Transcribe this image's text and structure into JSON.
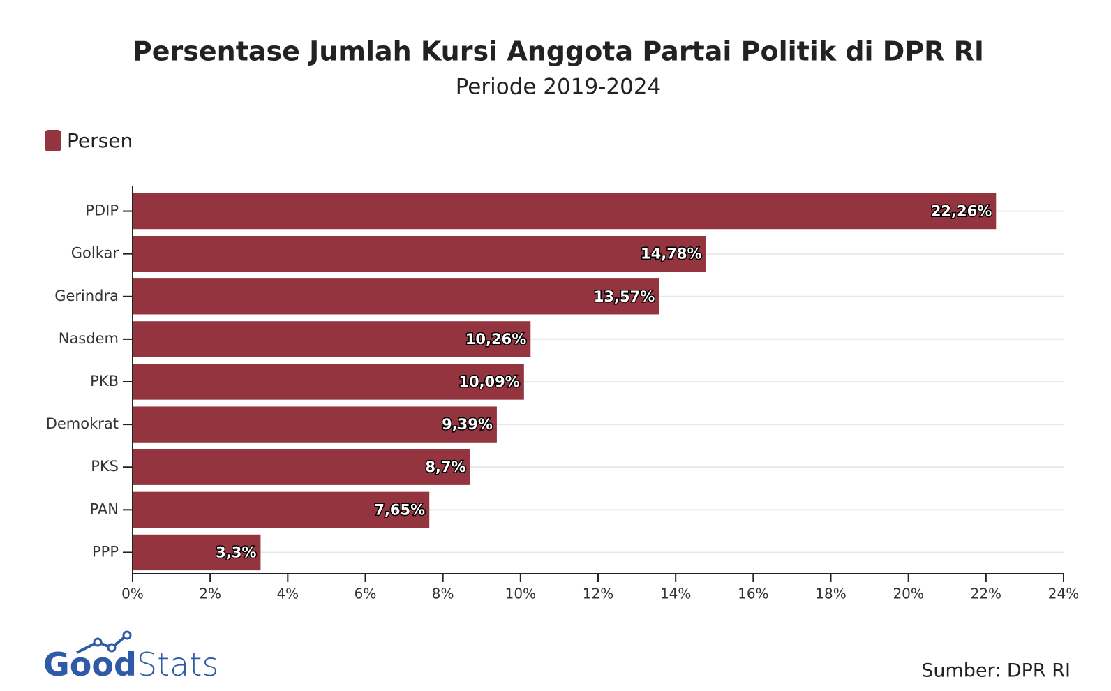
{
  "chart_data": {
    "type": "barh",
    "title": "Persentase Jumlah Kursi Anggota Partai Politik di DPR RI",
    "subtitle": "Periode 2019-2024",
    "categories": [
      "PDIP",
      "Golkar",
      "Gerindra",
      "Nasdem",
      "PKB",
      "Demokrat",
      "PKS",
      "PAN",
      "PPP"
    ],
    "series": [
      {
        "name": "Persen",
        "color": "#93343f",
        "values": [
          22.26,
          14.78,
          13.57,
          10.26,
          10.09,
          9.39,
          8.7,
          7.65,
          3.3
        ],
        "value_labels": [
          "22,26%",
          "14,78%",
          "13,57%",
          "10,26%",
          "10,09%",
          "9,39%",
          "8,7%",
          "7,65%",
          "3,3%"
        ]
      }
    ],
    "xlim": [
      0,
      24
    ],
    "xticks": [
      {
        "value": 0,
        "label": "0%"
      },
      {
        "value": 2,
        "label": "2%"
      },
      {
        "value": 4,
        "label": "4%"
      },
      {
        "value": 6,
        "label": "6%"
      },
      {
        "value": 8,
        "label": "8%"
      },
      {
        "value": 10,
        "label": "10%"
      },
      {
        "value": 12,
        "label": "12%"
      },
      {
        "value": 14,
        "label": "14%"
      },
      {
        "value": 16,
        "label": "16%"
      },
      {
        "value": 18,
        "label": "18%"
      },
      {
        "value": 20,
        "label": "20%"
      },
      {
        "value": 22,
        "label": "22%"
      },
      {
        "value": 24,
        "label": "24%"
      }
    ],
    "legend": "top-left",
    "source": "Sumber: DPR RI"
  },
  "logo": {
    "bold": "Good",
    "light": "Stats"
  }
}
